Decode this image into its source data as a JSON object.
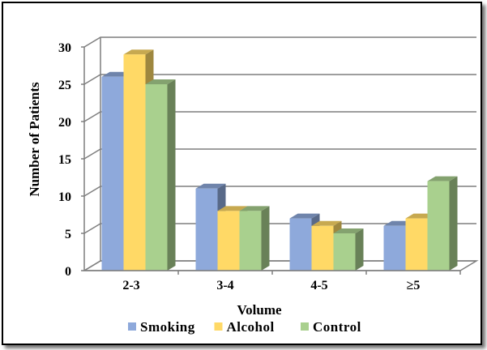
{
  "chart_data": {
    "type": "bar",
    "style": "3d-clustered-column",
    "categories": [
      "2-3",
      "3-4",
      "4-5",
      "≥5"
    ],
    "series": [
      {
        "name": "Smoking",
        "values": [
          26,
          11,
          7,
          6
        ],
        "color": "#8EA9DB"
      },
      {
        "name": "Alcohol",
        "values": [
          29,
          8,
          6,
          7
        ],
        "color": "#FFD966"
      },
      {
        "name": "Control",
        "values": [
          25,
          8,
          5,
          12
        ],
        "color": "#A9D08E"
      }
    ],
    "title": "",
    "xlabel": "Volume",
    "ylabel": "Number of Patients",
    "ylim": [
      0,
      30
    ],
    "yticks": [
      0,
      5,
      10,
      15,
      20,
      25,
      30
    ],
    "grid": true,
    "legend_position": "bottom"
  }
}
